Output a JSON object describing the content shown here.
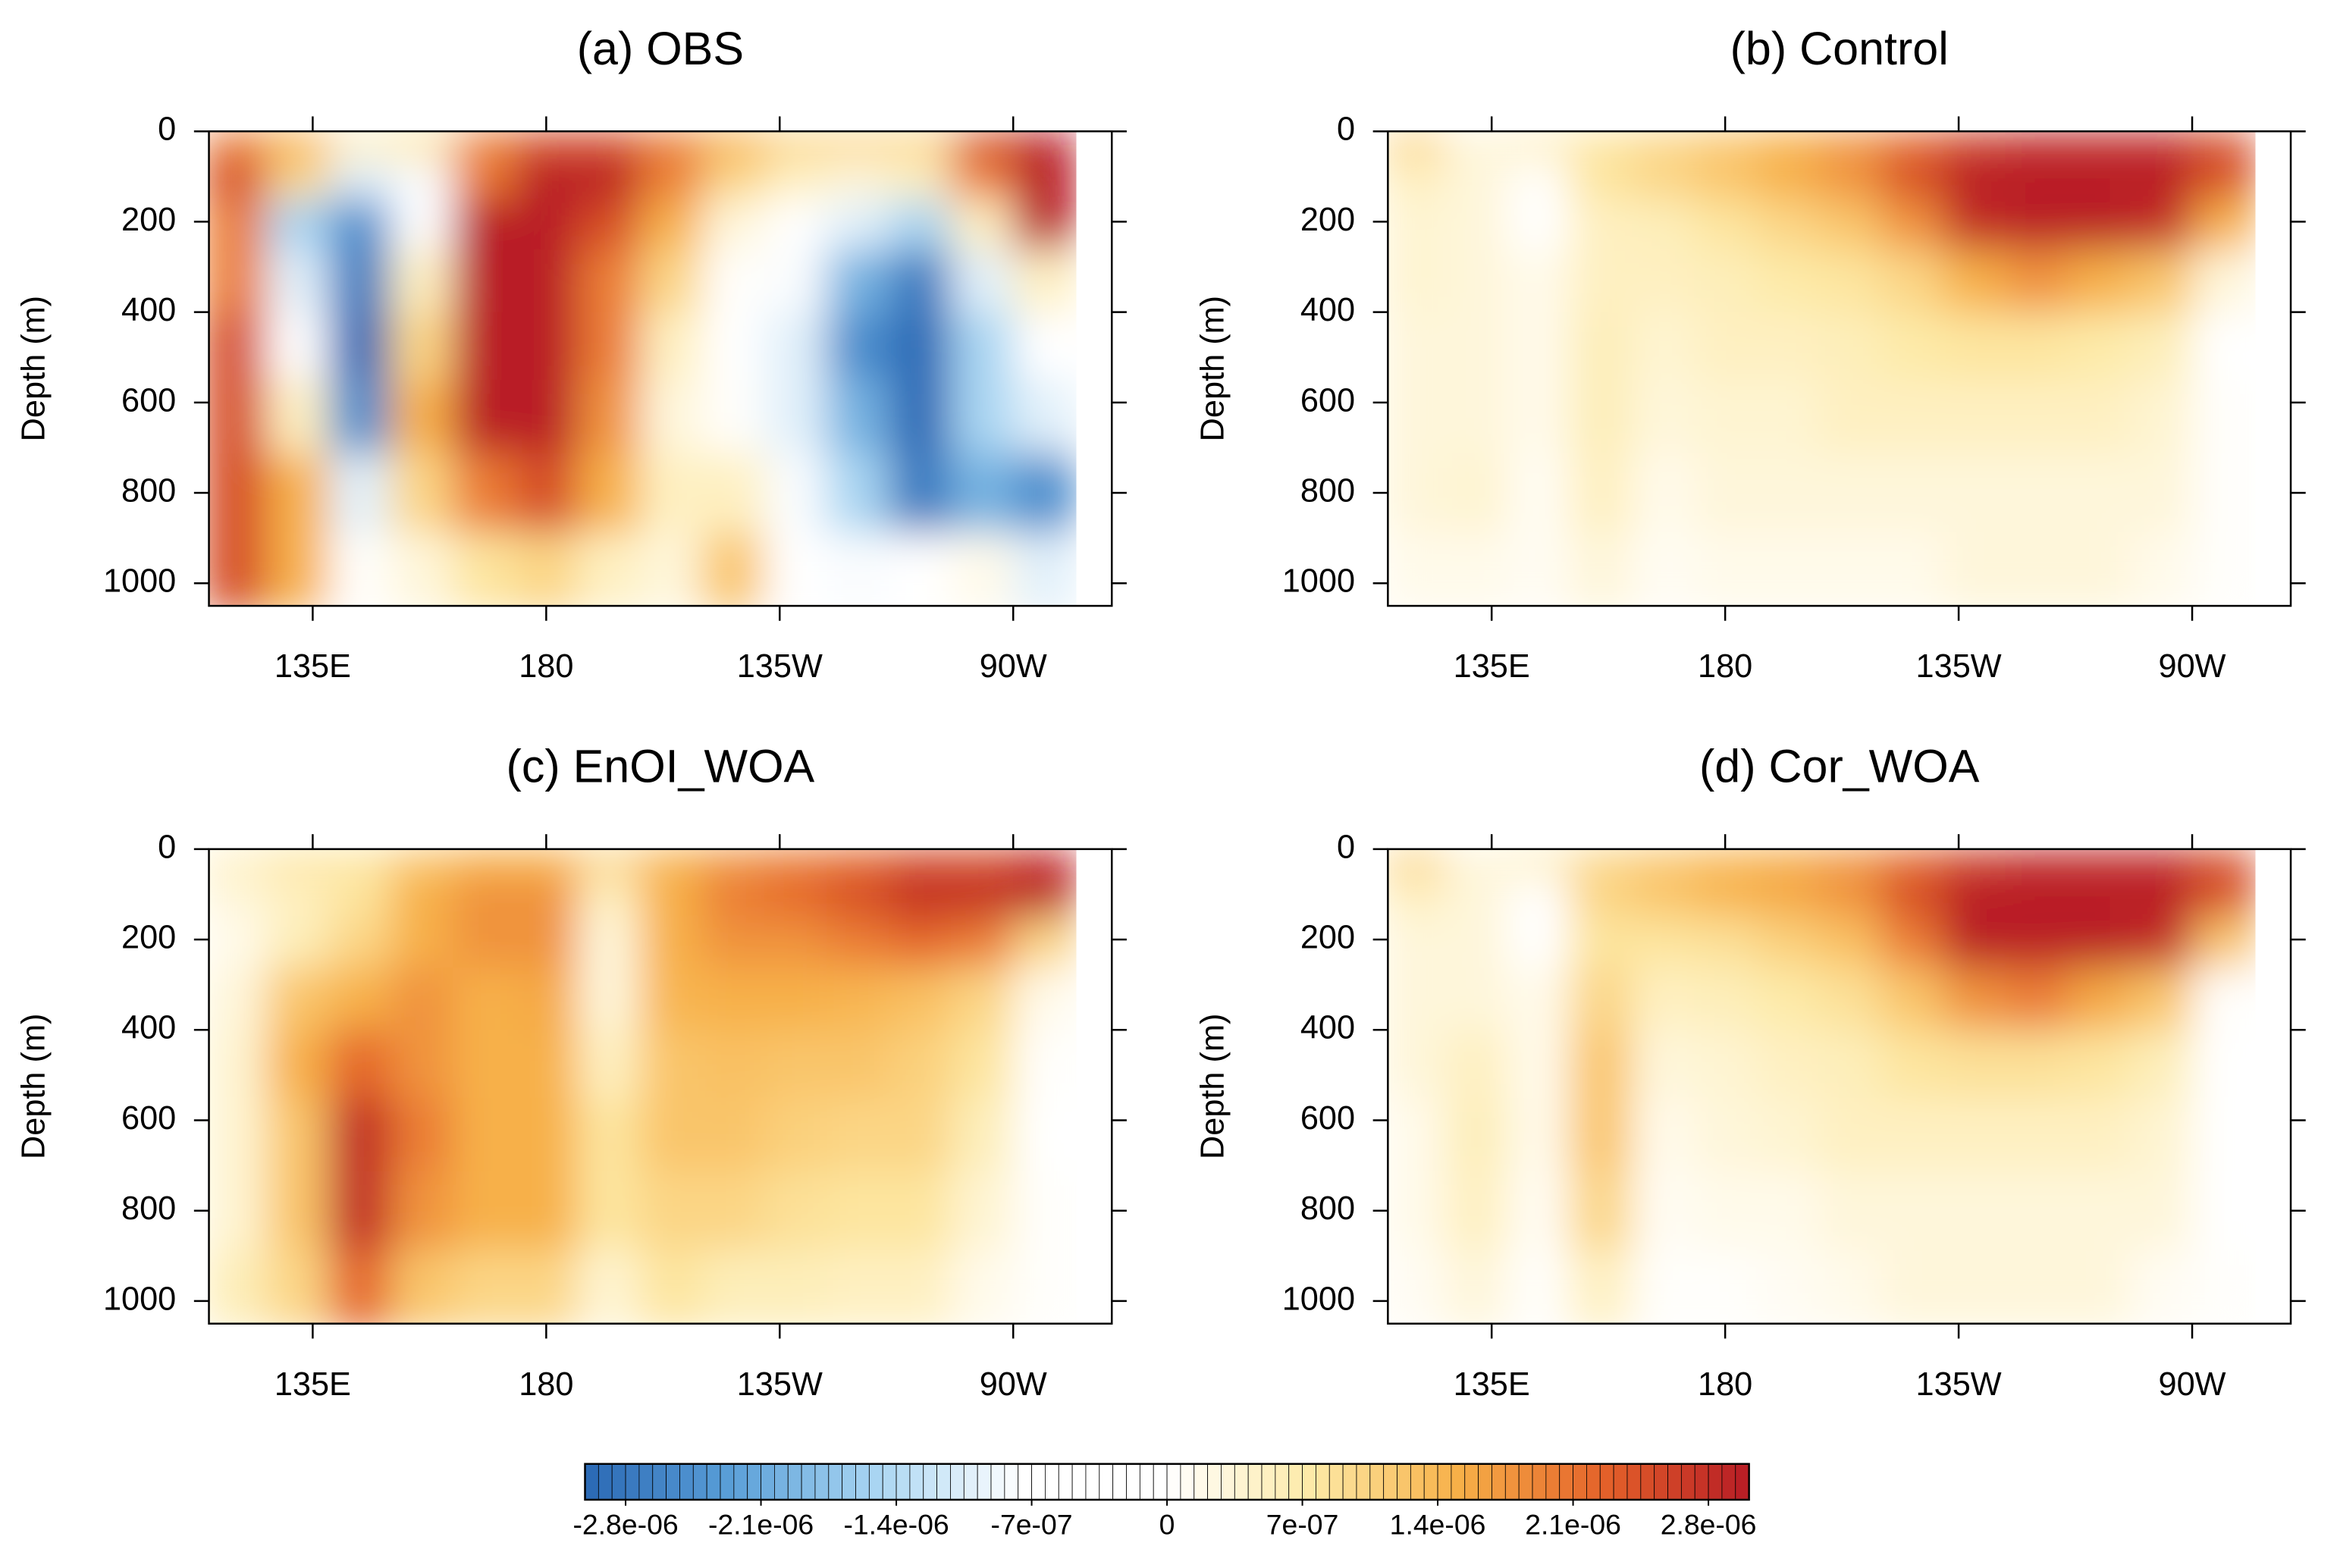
{
  "chart_data": [
    {
      "type": "heatmap",
      "title": "(a) OBS",
      "ylabel": "Depth (m)",
      "x": [
        120,
        132,
        144,
        156,
        168,
        180,
        192,
        204,
        216,
        228,
        240,
        252,
        264,
        276
      ],
      "y": [
        25,
        100,
        200,
        325,
        475,
        625,
        800,
        975
      ],
      "values": [
        [
          2e-06,
          1.5e-06,
          5e-07,
          8e-07,
          2e-06,
          2.5e-06,
          2.5e-06,
          2e-06,
          1.5e-06,
          1e-06,
          1e-06,
          1e-06,
          2.5e-06,
          3e-06
        ],
        [
          2.5e-06,
          1e-06,
          -1e-06,
          -8e-07,
          2e-06,
          3e-06,
          3e-06,
          2e-06,
          1e-06,
          5e-07,
          3e-07,
          5e-07,
          2e-06,
          3e-06
        ],
        [
          2e-06,
          -1.5e-06,
          -2.5e-06,
          -5e-07,
          3e-06,
          3e-06,
          2.5e-06,
          1.5e-06,
          3e-07,
          -3e-07,
          -1e-06,
          -1.5e-06,
          5e-07,
          3e-06
        ],
        [
          2e-06,
          -1e-06,
          -2.8e-06,
          5e-07,
          3e-06,
          3e-06,
          2e-06,
          1e-06,
          0,
          -8e-07,
          -2e-06,
          -2.8e-06,
          -1e-06,
          5e-07
        ],
        [
          2.5e-06,
          -5e-07,
          -3e-06,
          1e-06,
          3e-06,
          3e-06,
          2e-06,
          5e-07,
          -3e-07,
          -1e-06,
          -2.5e-06,
          -3e-06,
          -1.5e-06,
          -5e-07
        ],
        [
          2.5e-06,
          5e-07,
          -2.5e-06,
          1.5e-06,
          3e-06,
          3e-06,
          1.8e-06,
          3e-07,
          0,
          -1e-06,
          -2e-06,
          -3e-06,
          -1.5e-06,
          -1e-06
        ],
        [
          2.5e-06,
          1.5e-06,
          -1e-06,
          1e-06,
          2e-06,
          2.5e-06,
          1.5e-06,
          5e-07,
          5e-07,
          -8e-07,
          -1.5e-06,
          -2.8e-06,
          -2e-06,
          -2.5e-06
        ],
        [
          2.5e-06,
          1.5e-06,
          0,
          3e-07,
          8e-07,
          1e-06,
          5e-07,
          3e-07,
          1.2e-06,
          -3e-07,
          -8e-07,
          -5e-07,
          2e-07,
          -1e-06
        ]
      ],
      "xlim": [
        115,
        289
      ],
      "ylim": [
        1050,
        0
      ],
      "xticks": [
        {
          "value": 135,
          "label": "135E"
        },
        180,
        {
          "value": 225,
          "label": "135W"
        },
        {
          "value": 270,
          "label": "90W"
        }
      ],
      "yticks": [
        0,
        200,
        400,
        600,
        800,
        1000
      ]
    },
    {
      "type": "heatmap",
      "title": "(b) Control",
      "ylabel": "Depth (m)",
      "x": [
        120,
        132,
        144,
        156,
        168,
        180,
        192,
        204,
        216,
        228,
        240,
        252,
        264,
        276
      ],
      "y": [
        25,
        100,
        200,
        325,
        475,
        625,
        800,
        975
      ],
      "values": [
        [
          1e-06,
          3e-07,
          5e-07,
          8e-07,
          1e-06,
          1.2e-06,
          1.5e-06,
          1.8e-06,
          2.2e-06,
          2.6e-06,
          2.8e-06,
          2.8e-06,
          2.8e-06,
          2.5e-06
        ],
        [
          5e-07,
          3e-07,
          0,
          8e-07,
          1e-06,
          1.2e-06,
          1.5e-06,
          1.8e-06,
          2.5e-06,
          3e-06,
          3e-06,
          3e-06,
          3e-06,
          2.5e-06
        ],
        [
          4e-07,
          3e-07,
          -3e-07,
          5e-07,
          6e-07,
          8e-07,
          1e-06,
          1.2e-06,
          1.8e-06,
          2.8e-06,
          3e-06,
          3e-06,
          2.8e-06,
          1.5e-06
        ],
        [
          4e-07,
          3e-07,
          2e-07,
          5e-07,
          5e-07,
          6e-07,
          7e-07,
          8e-07,
          1e-06,
          1.5e-06,
          1.8e-06,
          1.5e-06,
          1.2e-06,
          3e-07
        ],
        [
          3e-07,
          3e-07,
          2e-07,
          6e-07,
          4e-07,
          5e-07,
          5e-07,
          6e-07,
          7e-07,
          8e-07,
          8e-07,
          7e-07,
          6e-07,
          -1e-07
        ],
        [
          3e-07,
          3e-07,
          2e-07,
          6e-07,
          3e-07,
          4e-07,
          4e-07,
          5e-07,
          5e-07,
          5e-07,
          5e-07,
          5e-07,
          4e-07,
          0
        ],
        [
          3e-07,
          4e-07,
          1e-07,
          5e-07,
          2e-07,
          3e-07,
          3e-07,
          3e-07,
          3e-07,
          3e-07,
          3e-07,
          3e-07,
          3e-07,
          0
        ],
        [
          2e-07,
          2e-07,
          1e-07,
          3e-07,
          1e-07,
          2e-07,
          2e-07,
          2e-07,
          2e-07,
          3e-07,
          3e-07,
          3e-07,
          2e-07,
          0
        ]
      ],
      "xlim": [
        115,
        289
      ],
      "ylim": [
        1050,
        0
      ],
      "xticks": [
        {
          "value": 135,
          "label": "135E"
        },
        180,
        {
          "value": 225,
          "label": "135W"
        },
        {
          "value": 270,
          "label": "90W"
        }
      ],
      "yticks": [
        0,
        200,
        400,
        600,
        800,
        1000
      ]
    },
    {
      "type": "heatmap",
      "title": "(c) EnOI_WOA",
      "ylabel": "Depth (m)",
      "x": [
        120,
        132,
        144,
        156,
        168,
        180,
        192,
        204,
        216,
        228,
        240,
        252,
        264,
        276
      ],
      "y": [
        25,
        100,
        200,
        325,
        475,
        625,
        800,
        975
      ],
      "values": [
        [
          5e-07,
          8e-07,
          8e-07,
          1.2e-06,
          1.5e-06,
          1.5e-06,
          1e-06,
          1.5e-06,
          1.8e-06,
          2e-06,
          2.2e-06,
          2.5e-06,
          2.5e-06,
          2.8e-06
        ],
        [
          3e-07,
          5e-07,
          8e-07,
          1.5e-06,
          1.8e-06,
          1.8e-06,
          5e-07,
          1.5e-06,
          2e-06,
          2.2e-06,
          2.5e-06,
          2.8e-06,
          2.8e-06,
          3e-06
        ],
        [
          2e-07,
          6e-07,
          1e-06,
          1.5e-06,
          1.8e-06,
          1.8e-06,
          3e-07,
          1.5e-06,
          1.8e-06,
          1.8e-06,
          2e-06,
          2.2e-06,
          2e-06,
          1e-06
        ],
        [
          3e-07,
          1.2e-06,
          1.5e-06,
          1.8e-06,
          1.5e-06,
          1.6e-06,
          3e-07,
          1.4e-06,
          1.5e-06,
          1.5e-06,
          1.4e-06,
          1.3e-06,
          1e-06,
          2e-07
        ],
        [
          4e-07,
          1.5e-06,
          2.2e-06,
          1.8e-06,
          1.5e-06,
          1.5e-06,
          5e-07,
          1.2e-06,
          1.3e-06,
          1.2e-06,
          1.2e-06,
          1.1e-06,
          8e-07,
          0
        ],
        [
          4e-07,
          1.2e-06,
          2.8e-06,
          2e-06,
          1.5e-06,
          1.5e-06,
          8e-07,
          1.2e-06,
          1.2e-06,
          1.1e-06,
          1e-06,
          1e-06,
          6e-07,
          -1e-07
        ],
        [
          4e-07,
          1.2e-06,
          2.8e-06,
          1.8e-06,
          1.5e-06,
          1.5e-06,
          8e-07,
          1e-06,
          1e-06,
          9e-07,
          8e-07,
          8e-07,
          4e-07,
          0
        ],
        [
          6e-07,
          1e-06,
          2.2e-06,
          1.2e-06,
          1e-06,
          1e-06,
          4e-07,
          8e-07,
          6e-07,
          6e-07,
          5e-07,
          5e-07,
          2e-07,
          0
        ]
      ],
      "xlim": [
        115,
        289
      ],
      "ylim": [
        1050,
        0
      ],
      "xticks": [
        {
          "value": 135,
          "label": "135E"
        },
        180,
        {
          "value": 225,
          "label": "135W"
        },
        {
          "value": 270,
          "label": "90W"
        }
      ],
      "yticks": [
        0,
        200,
        400,
        600,
        800,
        1000
      ]
    },
    {
      "type": "heatmap",
      "title": "(d) Cor_WOA",
      "ylabel": "Depth (m)",
      "x": [
        120,
        132,
        144,
        156,
        168,
        180,
        192,
        204,
        216,
        228,
        240,
        252,
        264,
        276
      ],
      "y": [
        25,
        100,
        200,
        325,
        475,
        625,
        800,
        975
      ],
      "values": [
        [
          1e-06,
          3e-07,
          5e-07,
          1e-06,
          1.2e-06,
          1.4e-06,
          1.6e-06,
          1.8e-06,
          2.2e-06,
          2.6e-06,
          2.8e-06,
          2.8e-06,
          2.8e-06,
          2.5e-06
        ],
        [
          5e-07,
          3e-07,
          -2e-07,
          1e-06,
          1.2e-06,
          1.4e-06,
          1.6e-06,
          1.8e-06,
          2.5e-06,
          3e-06,
          3e-06,
          3e-06,
          3e-06,
          2.5e-06
        ],
        [
          3e-07,
          3e-07,
          -3e-07,
          8e-07,
          8e-07,
          9e-07,
          1.1e-06,
          1.3e-06,
          2e-06,
          3e-06,
          3e-06,
          3e-06,
          2.8e-06,
          1.2e-06
        ],
        [
          3e-07,
          3e-07,
          2e-07,
          1e-06,
          5e-07,
          6e-07,
          7e-07,
          9e-07,
          1.2e-06,
          1.8e-06,
          2e-06,
          1.6e-06,
          1.2e-06,
          0
        ],
        [
          3e-07,
          5e-07,
          2e-07,
          1.2e-06,
          3e-07,
          4e-07,
          5e-07,
          6e-07,
          8e-07,
          9e-07,
          9e-07,
          8e-07,
          6e-07,
          -5e-07
        ],
        [
          2e-07,
          6e-07,
          2e-07,
          1.2e-06,
          2e-07,
          3e-07,
          4e-07,
          5e-07,
          5e-07,
          5e-07,
          5e-07,
          5e-07,
          4e-07,
          -6e-07
        ],
        [
          2e-07,
          5e-07,
          1e-07,
          1e-06,
          1e-07,
          2e-07,
          2e-07,
          3e-07,
          3e-07,
          3e-07,
          3e-07,
          3e-07,
          3e-07,
          -2e-07
        ],
        [
          1e-07,
          3e-07,
          0,
          5e-07,
          0,
          0,
          1e-07,
          2e-07,
          3e-07,
          3e-07,
          3e-07,
          3e-07,
          1e-07,
          0
        ]
      ],
      "xlim": [
        115,
        289
      ],
      "ylim": [
        1050,
        0
      ],
      "xticks": [
        {
          "value": 135,
          "label": "135E"
        },
        180,
        {
          "value": 225,
          "label": "135W"
        },
        {
          "value": 270,
          "label": "90W"
        }
      ],
      "yticks": [
        0,
        200,
        400,
        600,
        800,
        1000
      ]
    }
  ],
  "colorbar": {
    "lim": [
      -3.01e-06,
      3.01e-06
    ],
    "levels": 86,
    "colors": [
      "#2a68b4",
      "#5a9fd8",
      "#a9d5f2",
      "#ffffff",
      "#ffffff",
      "#fde9a6",
      "#f7b048",
      "#e4622a",
      "#b71c25"
    ],
    "ticks": [
      {
        "value": -2.8e-06,
        "label": "-2.8e-06"
      },
      {
        "value": -2.1e-06,
        "label": "-2.1e-06"
      },
      {
        "value": -1.4e-06,
        "label": "-1.4e-06"
      },
      {
        "value": -7e-07,
        "label": "-7e-07"
      },
      0,
      {
        "value": 7e-07,
        "label": "7e-07"
      },
      {
        "value": 1.4e-06,
        "label": "1.4e-06"
      },
      {
        "value": 2.1e-06,
        "label": "2.1e-06"
      },
      {
        "value": 2.8e-06,
        "label": "2.8e-06"
      }
    ]
  }
}
